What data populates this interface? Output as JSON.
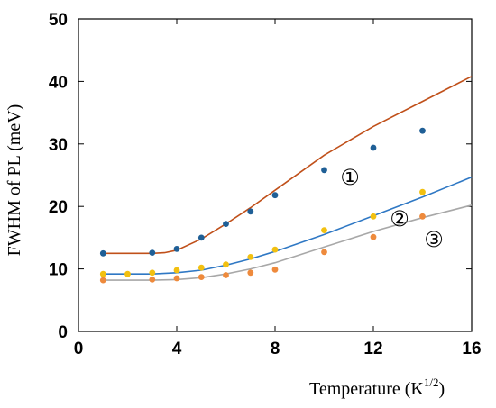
{
  "chart_data": {
    "type": "scatter",
    "title": "",
    "xlabel": "Temperature (K",
    "xlabel_sup": "1/2",
    "xlabel_close": ")",
    "ylabel": "FWHM of PL (meV)",
    "xlim": [
      0,
      16
    ],
    "ylim": [
      0,
      50
    ],
    "xticks": [
      0,
      4,
      8,
      12,
      16
    ],
    "yticks": [
      0,
      10,
      20,
      30,
      40,
      50
    ],
    "grid": false,
    "legend": "none",
    "series": [
      {
        "label": "①",
        "color": "#1f5f96",
        "line_color": "#c0501a",
        "x": [
          1,
          3,
          4,
          5,
          6,
          7,
          8,
          10,
          12,
          14
        ],
        "y": [
          12.5,
          12.6,
          13.2,
          15.0,
          17.2,
          19.2,
          21.8,
          25.8,
          29.4,
          32.1
        ],
        "fit_x": [
          1,
          2,
          3,
          3.5,
          4,
          5,
          6,
          7,
          8,
          10,
          12,
          14,
          16
        ],
        "fit_y": [
          12.5,
          12.5,
          12.5,
          12.6,
          13.0,
          14.8,
          17.2,
          19.8,
          22.6,
          28.2,
          32.8,
          36.8,
          40.8
        ]
      },
      {
        "label": "②",
        "color": "#f2c010",
        "line_color": "#2f78c4",
        "x": [
          1,
          2,
          3,
          4,
          5,
          6,
          7,
          8,
          10,
          12,
          14
        ],
        "y": [
          9.2,
          9.2,
          9.4,
          9.8,
          10.2,
          10.7,
          11.9,
          13.1,
          16.2,
          18.4,
          22.3
        ],
        "fit_x": [
          1,
          2,
          3,
          4,
          5,
          6,
          7,
          8,
          10,
          12,
          14,
          16
        ],
        "fit_y": [
          9.2,
          9.2,
          9.2,
          9.4,
          9.8,
          10.6,
          11.6,
          12.8,
          15.5,
          18.5,
          21.5,
          24.7
        ]
      },
      {
        "label": "③",
        "color": "#ee8a3c",
        "line_color": "#a8a8a8",
        "x": [
          1,
          3,
          4,
          5,
          6,
          7,
          8,
          10,
          12,
          14
        ],
        "y": [
          8.2,
          8.3,
          8.5,
          8.7,
          9.0,
          9.4,
          9.9,
          12.7,
          15.1,
          18.4
        ],
        "fit_x": [
          1,
          2,
          3,
          4,
          5,
          6,
          7,
          8,
          10,
          12,
          14,
          16
        ],
        "fit_y": [
          8.2,
          8.2,
          8.2,
          8.3,
          8.6,
          9.2,
          10.0,
          11.0,
          13.5,
          16.0,
          18.2,
          20.2
        ]
      }
    ]
  }
}
